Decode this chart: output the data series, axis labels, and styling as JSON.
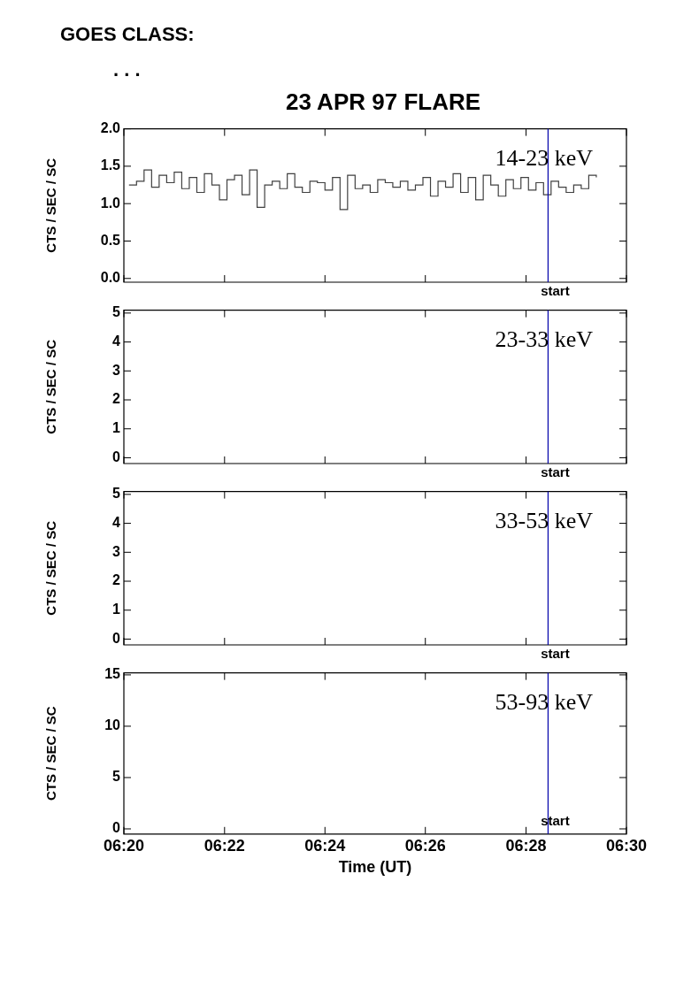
{
  "chart_data": [
    {
      "type": "step",
      "title": "23 APR 97 FLARE",
      "ylabel": "CTS / SEC / SC",
      "annotations": [
        "GOES CLASS:",
        ". . .",
        "14-23 keV"
      ],
      "xlim": [
        6.3333,
        6.5
      ],
      "xticks": [
        {
          "value": 6.3333,
          "label": null
        },
        {
          "value": 6.3667,
          "label": null
        },
        {
          "value": 6.4,
          "label": null
        },
        {
          "value": 6.4333,
          "label": null
        },
        {
          "value": 6.4667,
          "label": null
        },
        {
          "value": 6.5,
          "label": null
        }
      ],
      "ylim": [
        -0.05,
        2.0
      ],
      "yticks": [
        {
          "value": 0,
          "label": "0.0"
        },
        0.5,
        {
          "value": 1,
          "label": "1.0"
        },
        1.5,
        {
          "value": 2,
          "label": "2.0"
        }
      ],
      "tick_labels": "y",
      "grid": false,
      "legend": false,
      "ref_lines": [
        {
          "axis": "x",
          "value": 6.474,
          "label": "start",
          "color": "#0000aa"
        }
      ],
      "series": [
        {
          "color": "#404040",
          "x": [
            6.335,
            6.3375,
            6.34,
            6.3425,
            6.345,
            6.3475,
            6.35,
            6.3525,
            6.355,
            6.3575,
            6.36,
            6.3625,
            6.365,
            6.3675,
            6.37,
            6.3725,
            6.375,
            6.3775,
            6.38,
            6.3825,
            6.385,
            6.3875,
            6.39,
            6.3925,
            6.395,
            6.3975,
            6.4,
            6.4025,
            6.405,
            6.4075,
            6.41,
            6.4125,
            6.415,
            6.4175,
            6.42,
            6.4225,
            6.425,
            6.4275,
            6.43,
            6.4325,
            6.435,
            6.4375,
            6.44,
            6.4425,
            6.445,
            6.4475,
            6.45,
            6.4525,
            6.455,
            6.4575,
            6.46,
            6.4625,
            6.465,
            6.4675,
            6.47,
            6.4725,
            6.475,
            6.4775,
            6.48,
            6.4825,
            6.485,
            6.4875,
            6.49
          ],
          "values": [
            1.25,
            1.3,
            1.45,
            1.22,
            1.38,
            1.28,
            1.42,
            1.2,
            1.35,
            1.15,
            1.4,
            1.25,
            1.05,
            1.32,
            1.38,
            1.12,
            1.45,
            0.95,
            1.25,
            1.3,
            1.2,
            1.4,
            1.22,
            1.15,
            1.3,
            1.28,
            1.18,
            1.35,
            0.92,
            1.38,
            1.2,
            1.25,
            1.15,
            1.32,
            1.28,
            1.22,
            1.3,
            1.18,
            1.25,
            1.35,
            1.1,
            1.3,
            1.22,
            1.4,
            1.15,
            1.35,
            1.05,
            1.38,
            1.25,
            1.1,
            1.32,
            1.2,
            1.35,
            1.18,
            1.28,
            1.12,
            1.3,
            1.22,
            1.15,
            1.25,
            1.2,
            1.38,
            1.35
          ]
        }
      ]
    },
    {
      "type": "step",
      "ylabel": "CTS / SEC / SC",
      "annotations": [
        "23-33 keV"
      ],
      "xlim": [
        6.3333,
        6.5
      ],
      "xticks": [
        {
          "value": 6.3333,
          "label": null
        },
        {
          "value": 6.3667,
          "label": null
        },
        {
          "value": 6.4,
          "label": null
        },
        {
          "value": 6.4333,
          "label": null
        },
        {
          "value": 6.4667,
          "label": null
        },
        {
          "value": 6.5,
          "label": null
        }
      ],
      "ylim": [
        -0.2,
        5.1
      ],
      "yticks": [
        0,
        1,
        2,
        3,
        4,
        5
      ],
      "tick_labels": "y",
      "grid": false,
      "legend": false,
      "ref_lines": [
        {
          "axis": "x",
          "value": 6.474,
          "label": "start",
          "color": "#0000aa"
        }
      ]
    },
    {
      "type": "step",
      "ylabel": "CTS / SEC / SC",
      "annotations": [
        "33-53 keV"
      ],
      "xlim": [
        6.3333,
        6.5
      ],
      "xticks": [
        {
          "value": 6.3333,
          "label": null
        },
        {
          "value": 6.3667,
          "label": null
        },
        {
          "value": 6.4,
          "label": null
        },
        {
          "value": 6.4333,
          "label": null
        },
        {
          "value": 6.4667,
          "label": null
        },
        {
          "value": 6.5,
          "label": null
        }
      ],
      "ylim": [
        -0.2,
        5.1
      ],
      "yticks": [
        0,
        1,
        2,
        3,
        4,
        5
      ],
      "tick_labels": "y",
      "grid": false,
      "legend": false,
      "ref_lines": [
        {
          "axis": "x",
          "value": 6.474,
          "label": "start",
          "color": "#0000aa"
        }
      ]
    },
    {
      "type": "step",
      "ylabel": "CTS / SEC / SC",
      "xlabel": "Time (UT)",
      "annotations": [
        "53-93 keV"
      ],
      "xlim": [
        6.3333,
        6.5
      ],
      "xticks": [
        {
          "value": 6.3333,
          "label": "06:20"
        },
        {
          "value": 6.3667,
          "label": "06:22"
        },
        {
          "value": 6.4,
          "label": "06:24"
        },
        {
          "value": 6.4333,
          "label": "06:26"
        },
        {
          "value": 6.4667,
          "label": "06:28"
        },
        {
          "value": 6.5,
          "label": "06:30"
        }
      ],
      "ylim": [
        -0.5,
        15.2
      ],
      "yticks": [
        0,
        5,
        10,
        15
      ],
      "grid": false,
      "legend": false,
      "ref_lines": [
        {
          "axis": "x",
          "value": 6.474,
          "label": "start",
          "color": "#0000aa"
        }
      ]
    }
  ]
}
